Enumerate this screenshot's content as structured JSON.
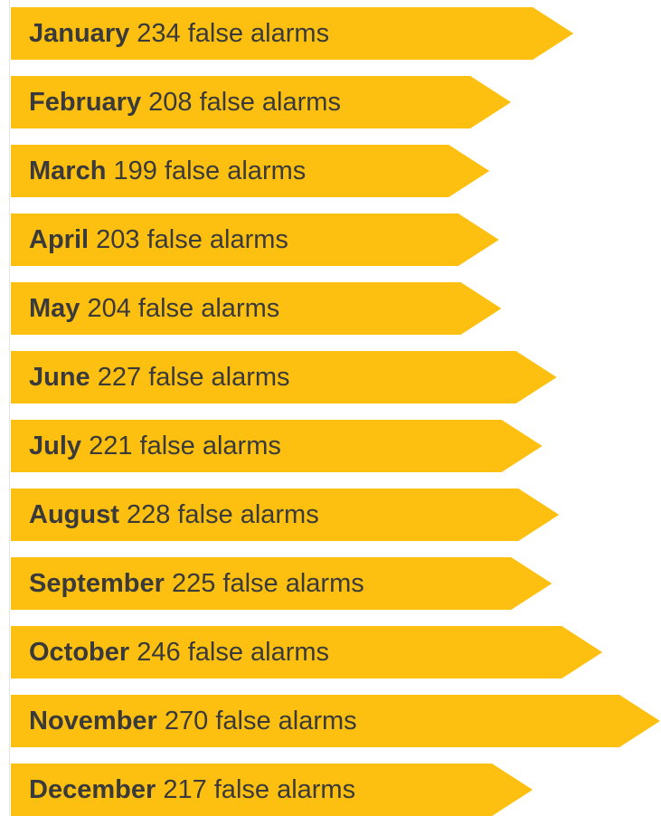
{
  "chart_data": {
    "type": "bar",
    "orientation": "horizontal",
    "color": "#fdc010",
    "categories": [
      "January",
      "February",
      "March",
      "April",
      "May",
      "June",
      "July",
      "August",
      "September",
      "October",
      "November",
      "December"
    ],
    "values": [
      234,
      208,
      199,
      203,
      204,
      227,
      221,
      228,
      225,
      246,
      270,
      217
    ],
    "value_labels": [
      "234 false alarms",
      "208 false alarms",
      "199 false alarms",
      "203 false alarms",
      "204 false alarms",
      "227 false alarms",
      "221 false alarms",
      "228 false alarms",
      "225 false alarms",
      "246 false alarms",
      "270 false alarms",
      "217 false alarms"
    ]
  }
}
